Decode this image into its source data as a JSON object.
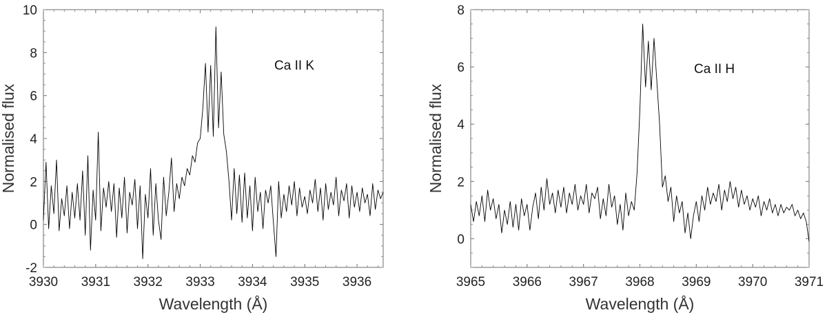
{
  "chart_data": [
    {
      "type": "line",
      "annotation": "Ca II K",
      "xlabel": "Wavelength (Å)",
      "ylabel": "Normalised flux",
      "xlim": [
        3930,
        3936.5
      ],
      "ylim": [
        -2,
        10
      ],
      "xticks": [
        "3930",
        "3931",
        "3932",
        "3933",
        "3934",
        "3935",
        "3936"
      ],
      "yticks": [
        "-2",
        "0",
        "2",
        "4",
        "6",
        "8",
        "10"
      ],
      "grid": false,
      "line_color": "#000000",
      "x": [
        3930.0,
        3930.05,
        3930.1,
        3930.15,
        3930.2,
        3930.25,
        3930.3,
        3930.35,
        3930.4,
        3930.45,
        3930.5,
        3930.55,
        3930.6,
        3930.65,
        3930.7,
        3930.75,
        3930.8,
        3930.85,
        3930.9,
        3930.95,
        3931.0,
        3931.05,
        3931.1,
        3931.15,
        3931.2,
        3931.25,
        3931.3,
        3931.35,
        3931.4,
        3931.45,
        3931.5,
        3931.55,
        3931.6,
        3931.65,
        3931.7,
        3931.75,
        3931.8,
        3931.85,
        3931.9,
        3931.95,
        3932.0,
        3932.05,
        3932.1,
        3932.15,
        3932.2,
        3932.25,
        3932.3,
        3932.35,
        3932.4,
        3932.45,
        3932.5,
        3932.55,
        3932.6,
        3932.65,
        3932.7,
        3932.75,
        3932.8,
        3932.85,
        3932.9,
        3932.95,
        3933.0,
        3933.05,
        3933.1,
        3933.15,
        3933.2,
        3933.25,
        3933.3,
        3933.35,
        3933.4,
        3933.45,
        3933.5,
        3933.55,
        3933.6,
        3933.65,
        3933.7,
        3933.75,
        3933.8,
        3933.85,
        3933.9,
        3933.95,
        3934.0,
        3934.05,
        3934.1,
        3934.15,
        3934.2,
        3934.25,
        3934.3,
        3934.35,
        3934.4,
        3934.45,
        3934.5,
        3934.55,
        3934.6,
        3934.65,
        3934.7,
        3934.75,
        3934.8,
        3934.85,
        3934.9,
        3934.95,
        3935.0,
        3935.05,
        3935.1,
        3935.15,
        3935.2,
        3935.25,
        3935.3,
        3935.35,
        3935.4,
        3935.45,
        3935.5,
        3935.55,
        3935.6,
        3935.65,
        3935.7,
        3935.75,
        3935.8,
        3935.85,
        3935.9,
        3935.95,
        3936.0,
        3936.05,
        3936.1,
        3936.15,
        3936.2,
        3936.25,
        3936.3,
        3936.35,
        3936.4,
        3936.45,
        3936.5
      ],
      "y": [
        0.2,
        2.9,
        -0.2,
        1.8,
        0.5,
        3.0,
        -0.3,
        1.2,
        0.4,
        1.8,
        -0.2,
        1.5,
        0.3,
        1.9,
        0.2,
        2.5,
        -0.5,
        3.2,
        -1.2,
        1.6,
        0.2,
        4.3,
        -0.3,
        1.7,
        0.8,
        2.0,
        0.6,
        1.9,
        -0.6,
        1.7,
        0.3,
        2.2,
        -0.4,
        1.5,
        0.9,
        2.1,
        -0.2,
        1.8,
        -1.6,
        1.4,
        0.3,
        2.6,
        -0.5,
        1.9,
        0.2,
        -0.7,
        2.2,
        0.4,
        1.5,
        3.1,
        0.6,
        1.9,
        1.2,
        2.2,
        1.8,
        2.6,
        2.3,
        3.2,
        2.9,
        3.8,
        4.0,
        5.4,
        7.5,
        4.3,
        7.4,
        4.1,
        9.2,
        4.5,
        7.1,
        4.2,
        3.4,
        2.0,
        0.2,
        2.6,
        0.5,
        2.3,
        0.1,
        2.4,
        0.3,
        1.8,
        -0.3,
        2.2,
        0.6,
        1.5,
        -0.2,
        1.6,
        1.0,
        1.8,
        0.1,
        -1.5,
        2.0,
        0.3,
        1.4,
        0.6,
        1.8,
        0.9,
        2.0,
        0.4,
        1.7,
        0.8,
        1.3,
        0.5,
        1.6,
        1.0,
        2.1,
        0.6,
        1.7,
        0.2,
        1.9,
        0.7,
        1.5,
        0.9,
        2.2,
        0.4,
        1.6,
        1.1,
        1.9,
        0.3,
        1.8,
        0.8,
        1.5,
        0.6,
        1.7,
        1.0,
        1.4,
        0.4,
        1.9,
        0.7,
        1.6,
        1.2,
        1.5
      ]
    },
    {
      "type": "line",
      "annotation": "Ca II H",
      "xlabel": "Wavelength (Å)",
      "ylabel": "Normalised flux",
      "xlim": [
        3965,
        3971
      ],
      "ylim": [
        -1,
        8
      ],
      "xticks": [
        "3965",
        "3966",
        "3967",
        "3968",
        "3969",
        "3970",
        "3971"
      ],
      "yticks": [
        "0",
        "2",
        "4",
        "6",
        "8"
      ],
      "grid": false,
      "line_color": "#000000",
      "x": [
        3965.0,
        3965.05,
        3965.1,
        3965.15,
        3965.2,
        3965.25,
        3965.3,
        3965.35,
        3965.4,
        3965.45,
        3965.5,
        3965.55,
        3965.6,
        3965.65,
        3965.7,
        3965.75,
        3965.8,
        3965.85,
        3965.9,
        3965.95,
        3966.0,
        3966.05,
        3966.1,
        3966.15,
        3966.2,
        3966.25,
        3966.3,
        3966.35,
        3966.4,
        3966.45,
        3966.5,
        3966.55,
        3966.6,
        3966.65,
        3966.7,
        3966.75,
        3966.8,
        3966.85,
        3966.9,
        3966.95,
        3967.0,
        3967.05,
        3967.1,
        3967.15,
        3967.2,
        3967.25,
        3967.3,
        3967.35,
        3967.4,
        3967.45,
        3967.5,
        3967.55,
        3967.6,
        3967.65,
        3967.7,
        3967.75,
        3967.8,
        3967.85,
        3967.9,
        3967.95,
        3968.0,
        3968.05,
        3968.1,
        3968.15,
        3968.2,
        3968.25,
        3968.3,
        3968.35,
        3968.4,
        3968.45,
        3968.5,
        3968.55,
        3968.6,
        3968.65,
        3968.7,
        3968.75,
        3968.8,
        3968.85,
        3968.9,
        3968.95,
        3969.0,
        3969.05,
        3969.1,
        3969.15,
        3969.2,
        3969.25,
        3969.3,
        3969.35,
        3969.4,
        3969.45,
        3969.5,
        3969.55,
        3969.6,
        3969.65,
        3969.7,
        3969.75,
        3969.8,
        3969.85,
        3969.9,
        3969.95,
        3970.0,
        3970.05,
        3970.1,
        3970.15,
        3970.2,
        3970.25,
        3970.3,
        3970.35,
        3970.4,
        3970.45,
        3970.5,
        3970.55,
        3970.6,
        3970.65,
        3970.7,
        3970.75,
        3970.8,
        3970.85,
        3970.9,
        3970.95,
        3971.0
      ],
      "y": [
        1.2,
        0.6,
        1.3,
        0.8,
        1.5,
        0.6,
        1.7,
        1.0,
        1.4,
        0.7,
        1.2,
        0.2,
        1.0,
        0.5,
        1.3,
        0.4,
        1.2,
        0.3,
        1.4,
        0.8,
        1.2,
        0.3,
        1.1,
        1.6,
        0.7,
        1.8,
        1.0,
        2.1,
        1.2,
        1.6,
        0.9,
        1.7,
        1.1,
        1.8,
        0.9,
        1.6,
        1.2,
        1.9,
        1.0,
        1.5,
        1.2,
        1.9,
        0.9,
        1.6,
        1.4,
        1.8,
        0.7,
        1.4,
        0.8,
        1.9,
        1.1,
        1.5,
        0.5,
        1.2,
        0.3,
        1.6,
        0.8,
        1.3,
        1.0,
        2.3,
        4.5,
        7.5,
        5.3,
        6.9,
        5.2,
        7.0,
        5.5,
        4.0,
        1.8,
        2.2,
        1.3,
        1.8,
        0.6,
        1.5,
        0.9,
        1.3,
        0.2,
        0.9,
        0.0,
        0.8,
        1.3,
        0.6,
        1.5,
        1.0,
        1.8,
        1.2,
        1.6,
        1.3,
        1.9,
        1.0,
        1.7,
        1.3,
        2.0,
        1.4,
        1.8,
        1.1,
        1.7,
        1.2,
        1.5,
        1.0,
        1.4,
        1.1,
        1.5,
        0.8,
        1.3,
        1.0,
        1.4,
        0.9,
        1.2,
        0.8,
        1.2,
        0.9,
        1.1,
        1.0,
        1.2,
        0.8,
        1.0,
        0.7,
        0.9,
        0.6,
        -0.1
      ]
    }
  ]
}
